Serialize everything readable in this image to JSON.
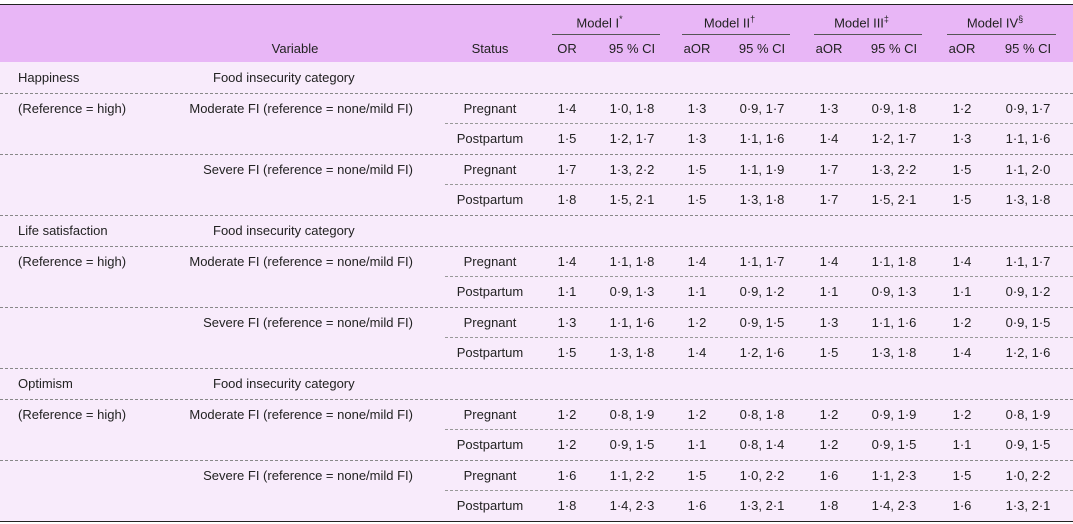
{
  "header": {
    "variable": "Variable",
    "status": "Status",
    "models": [
      {
        "name": "Model I",
        "mark": "*",
        "cols": [
          "OR",
          "95 % CI"
        ]
      },
      {
        "name": "Model II",
        "mark": "†",
        "cols": [
          "aOR",
          "95 % CI"
        ]
      },
      {
        "name": "Model III",
        "mark": "‡",
        "cols": [
          "aOR",
          "95 % CI"
        ]
      },
      {
        "name": "Model IV",
        "mark": "§",
        "cols": [
          "aOR",
          "95 % CI"
        ]
      }
    ]
  },
  "groups": [
    {
      "variable": "Happiness",
      "category": "Food insecurity category",
      "reference": "(Reference = high)",
      "levels": [
        {
          "label": "Moderate FI (reference = none/mild FI)",
          "rows": [
            {
              "status": "Pregnant",
              "cells": [
                "1·4",
                "1·0, 1·8",
                "1·3",
                "0·9, 1·7",
                "1·3",
                "0·9, 1·8",
                "1·2",
                "0·9, 1·7"
              ]
            },
            {
              "status": "Postpartum",
              "cells": [
                "1·5",
                "1·2, 1·7",
                "1·3",
                "1·1, 1·6",
                "1·4",
                "1·2, 1·7",
                "1·3",
                "1·1, 1·6"
              ]
            }
          ]
        },
        {
          "label": "Severe FI (reference = none/mild FI)",
          "rows": [
            {
              "status": "Pregnant",
              "cells": [
                "1·7",
                "1·3, 2·2",
                "1·5",
                "1·1, 1·9",
                "1·7",
                "1·3, 2·2",
                "1·5",
                "1·1, 2·0"
              ]
            },
            {
              "status": "Postpartum",
              "cells": [
                "1·8",
                "1·5, 2·1",
                "1·5",
                "1·3, 1·8",
                "1·7",
                "1·5, 2·1",
                "1·5",
                "1·3, 1·8"
              ]
            }
          ]
        }
      ]
    },
    {
      "variable": "Life satisfaction",
      "category": "Food insecurity category",
      "reference": "(Reference = high)",
      "levels": [
        {
          "label": "Moderate FI (reference = none/mild FI)",
          "rows": [
            {
              "status": "Pregnant",
              "cells": [
                "1·4",
                "1·1, 1·8",
                "1·4",
                "1·1, 1·7",
                "1·4",
                "1·1, 1·8",
                "1·4",
                "1·1, 1·7"
              ]
            },
            {
              "status": "Postpartum",
              "cells": [
                "1·1",
                "0·9, 1·3",
                "1·1",
                "0·9, 1·2",
                "1·1",
                "0·9, 1·3",
                "1·1",
                "0·9, 1·2"
              ]
            }
          ]
        },
        {
          "label": "Severe FI (reference = none/mild FI)",
          "rows": [
            {
              "status": "Pregnant",
              "cells": [
                "1·3",
                "1·1, 1·6",
                "1·2",
                "0·9, 1·5",
                "1·3",
                "1·1, 1·6",
                "1·2",
                "0·9, 1·5"
              ]
            },
            {
              "status": "Postpartum",
              "cells": [
                "1·5",
                "1·3, 1·8",
                "1·4",
                "1·2, 1·6",
                "1·5",
                "1·3, 1·8",
                "1·4",
                "1·2, 1·6"
              ]
            }
          ]
        }
      ]
    },
    {
      "variable": "Optimism",
      "category": "Food insecurity category",
      "reference": "(Reference = high)",
      "levels": [
        {
          "label": "Moderate FI (reference = none/mild FI)",
          "rows": [
            {
              "status": "Pregnant",
              "cells": [
                "1·2",
                "0·8, 1·9",
                "1·2",
                "0·8, 1·8",
                "1·2",
                "0·9, 1·9",
                "1·2",
                "0·8, 1·9"
              ]
            },
            {
              "status": "Postpartum",
              "cells": [
                "1·2",
                "0·9, 1·5",
                "1·1",
                "0·8, 1·4",
                "1·2",
                "0·9, 1·5",
                "1·1",
                "0·9, 1·5"
              ]
            }
          ]
        },
        {
          "label": "Severe FI (reference = none/mild FI)",
          "rows": [
            {
              "status": "Pregnant",
              "cells": [
                "1·6",
                "1·1, 2·2",
                "1·5",
                "1·0, 2·2",
                "1·6",
                "1·1, 2·3",
                "1·5",
                "1·0, 2·2"
              ]
            },
            {
              "status": "Postpartum",
              "cells": [
                "1·8",
                "1·4, 2·3",
                "1·6",
                "1·3, 2·1",
                "1·8",
                "1·4, 2·3",
                "1·6",
                "1·3, 2·1"
              ]
            }
          ]
        }
      ]
    }
  ]
}
